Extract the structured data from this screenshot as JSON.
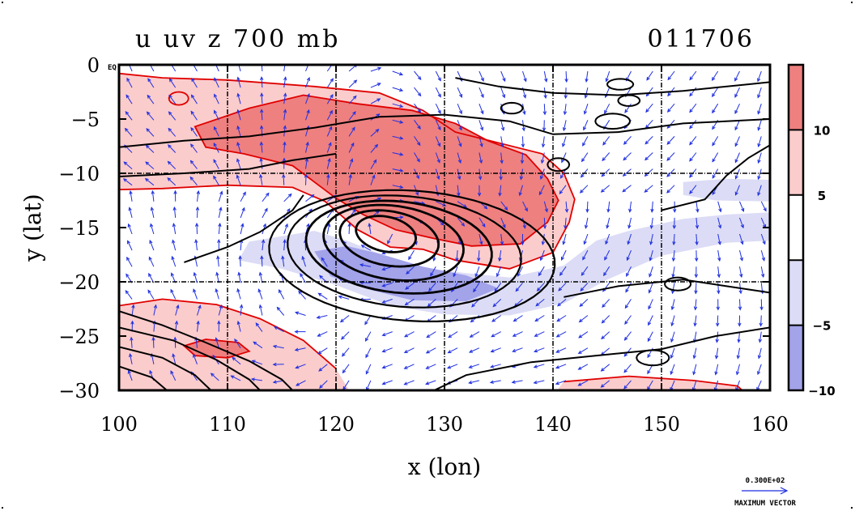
{
  "chart_data": {
    "type": "heatmap",
    "title_left": "u uv z 700 mb",
    "title_right": "011706",
    "xlabel": "x (lon)",
    "ylabel": "y (lat)",
    "xlim": [
      100,
      160
    ],
    "ylim": [
      -30,
      0
    ],
    "x_ticks": [
      100,
      110,
      120,
      130,
      140,
      150,
      160
    ],
    "x_tick_labels": [
      "100",
      "110",
      "120",
      "130",
      "140",
      "150",
      "160"
    ],
    "y_ticks": [
      0,
      -5,
      -10,
      -15,
      -20,
      -25,
      -30
    ],
    "y_tick_labels": [
      "0",
      "−5",
      "−10",
      "−15",
      "−20",
      "−25",
      "−30"
    ],
    "y_zero_suffix": "EQ",
    "grid": true,
    "grid_lines_x": [
      110,
      120,
      130,
      140,
      150
    ],
    "grid_lines_y": [
      -10,
      -20
    ],
    "colorbar": {
      "position": "right",
      "levels": [
        {
          "min": 10,
          "max": 15,
          "color": "#ee8080"
        },
        {
          "min": 5,
          "max": 10,
          "color": "#fbcccc"
        },
        {
          "min": -5,
          "max": 5,
          "color": "#ffffff"
        },
        {
          "min": -10,
          "max": -5,
          "color": "#dcdcf6"
        },
        {
          "min": -15,
          "max": -10,
          "color": "#a3a3ea"
        }
      ],
      "tick_values": [
        10,
        5,
        -5,
        -10
      ],
      "tick_labels": [
        "10",
        "5",
        "−5",
        "−10"
      ]
    },
    "fields": {
      "u_shading": "700 mb zonal wind (u), shaded: easterly band 7-14S from 105E-140E (u>5, core >10 near 120-135E, 12-16S), westerly (u<-5) wrapping south side of cyclone 16-23S 118-140E (core <-10 near 122-135E, 18-21S), positive band along 25-30S 100-120E",
      "z_contours": "geopotential height contours, closed low centred near 125E 15S",
      "uv_vectors": "wind vectors, blue arrows, cyclonic circulation"
    },
    "vector_reference": {
      "value_label": "0.300E+02",
      "caption": "MAXIMUM VECTOR"
    },
    "colors": {
      "vector": "#1f2fe0",
      "positive_contour": "#e00000",
      "height_contour": "#000000",
      "frame": "#000000"
    }
  }
}
